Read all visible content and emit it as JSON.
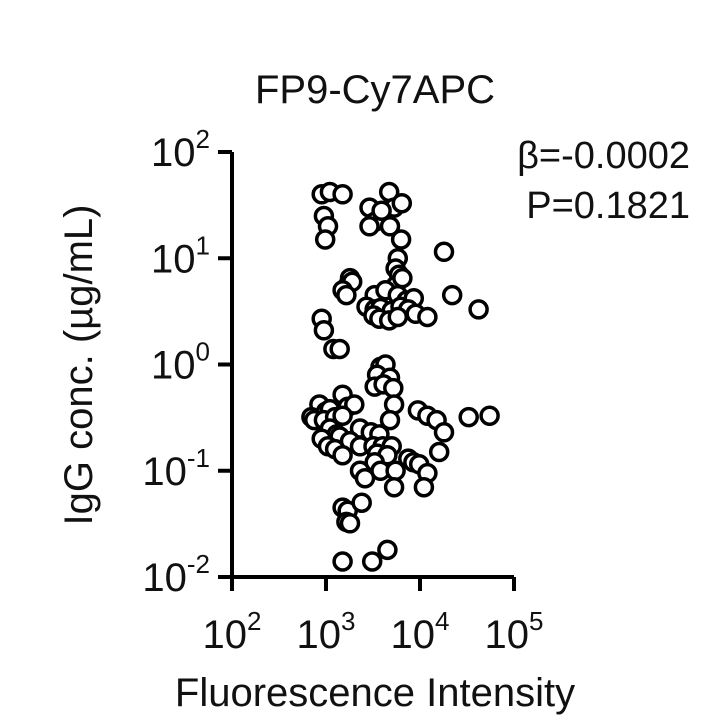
{
  "chart_data": {
    "type": "scatter",
    "title": "FP9-Cy7APC",
    "xlabel": "Fluorescence Intensity",
    "ylabel": "IgG conc. (µg/mL)",
    "x_scale": "log",
    "y_scale": "log",
    "xlim": [
      100,
      100000
    ],
    "ylim": [
      0.01,
      100
    ],
    "x_ticks": [
      {
        "base": "10",
        "exp": "2",
        "value": 100
      },
      {
        "base": "10",
        "exp": "3",
        "value": 1000
      },
      {
        "base": "10",
        "exp": "4",
        "value": 10000
      },
      {
        "base": "10",
        "exp": "5",
        "value": 100000
      }
    ],
    "y_ticks": [
      {
        "base": "10",
        "exp": "-2",
        "value": 0.01
      },
      {
        "base": "10",
        "exp": "-1",
        "value": 0.1
      },
      {
        "base": "10",
        "exp": "0",
        "value": 1
      },
      {
        "base": "10",
        "exp": "1",
        "value": 10
      },
      {
        "base": "10",
        "exp": "2",
        "value": 100
      }
    ],
    "annotations": [
      "β=-0.0002",
      "P=0.1821"
    ],
    "grid": false,
    "marker": {
      "shape": "open-circle",
      "stroke": "#000000",
      "fill": "#ffffff"
    },
    "points": [
      {
        "x": 900,
        "y": 40
      },
      {
        "x": 1100,
        "y": 42
      },
      {
        "x": 1500,
        "y": 40
      },
      {
        "x": 950,
        "y": 25
      },
      {
        "x": 1050,
        "y": 20
      },
      {
        "x": 980,
        "y": 15
      },
      {
        "x": 2900,
        "y": 30
      },
      {
        "x": 3300,
        "y": 22
      },
      {
        "x": 4700,
        "y": 42
      },
      {
        "x": 5300,
        "y": 30
      },
      {
        "x": 6400,
        "y": 33
      },
      {
        "x": 3900,
        "y": 28
      },
      {
        "x": 2900,
        "y": 20
      },
      {
        "x": 4800,
        "y": 20
      },
      {
        "x": 6300,
        "y": 15
      },
      {
        "x": 5800,
        "y": 10
      },
      {
        "x": 18000,
        "y": 11.5
      },
      {
        "x": 5500,
        "y": 8
      },
      {
        "x": 6000,
        "y": 7
      },
      {
        "x": 1800,
        "y": 6.5
      },
      {
        "x": 1700,
        "y": 5.5
      },
      {
        "x": 1900,
        "y": 6
      },
      {
        "x": 5500,
        "y": 5.5
      },
      {
        "x": 6500,
        "y": 6.5
      },
      {
        "x": 1500,
        "y": 5
      },
      {
        "x": 1650,
        "y": 4.5
      },
      {
        "x": 3300,
        "y": 4.5
      },
      {
        "x": 4300,
        "y": 5
      },
      {
        "x": 5800,
        "y": 4.5
      },
      {
        "x": 7200,
        "y": 4
      },
      {
        "x": 8600,
        "y": 4.2
      },
      {
        "x": 22000,
        "y": 4.5
      },
      {
        "x": 2700,
        "y": 3.5
      },
      {
        "x": 3300,
        "y": 3.3
      },
      {
        "x": 3800,
        "y": 3.4
      },
      {
        "x": 5000,
        "y": 3.2
      },
      {
        "x": 6200,
        "y": 3.5
      },
      {
        "x": 7500,
        "y": 3.3
      },
      {
        "x": 9000,
        "y": 3
      },
      {
        "x": 42000,
        "y": 3.3
      },
      {
        "x": 3200,
        "y": 2.9
      },
      {
        "x": 3700,
        "y": 2.7
      },
      {
        "x": 4700,
        "y": 2.6
      },
      {
        "x": 5800,
        "y": 2.8
      },
      {
        "x": 12000,
        "y": 2.8
      },
      {
        "x": 900,
        "y": 2.7
      },
      {
        "x": 950,
        "y": 2.1
      },
      {
        "x": 1200,
        "y": 1.4
      },
      {
        "x": 1400,
        "y": 1.4
      },
      {
        "x": 3800,
        "y": 0.95
      },
      {
        "x": 4300,
        "y": 1
      },
      {
        "x": 3500,
        "y": 0.8
      },
      {
        "x": 4800,
        "y": 0.75
      },
      {
        "x": 3300,
        "y": 0.62
      },
      {
        "x": 4100,
        "y": 0.65
      },
      {
        "x": 5200,
        "y": 0.6
      },
      {
        "x": 1500,
        "y": 0.52
      },
      {
        "x": 850,
        "y": 0.42
      },
      {
        "x": 1000,
        "y": 0.36
      },
      {
        "x": 1100,
        "y": 0.38
      },
      {
        "x": 1700,
        "y": 0.4
      },
      {
        "x": 2000,
        "y": 0.42
      },
      {
        "x": 5300,
        "y": 0.42
      },
      {
        "x": 700,
        "y": 0.32
      },
      {
        "x": 750,
        "y": 0.3
      },
      {
        "x": 950,
        "y": 0.3
      },
      {
        "x": 1250,
        "y": 0.32
      },
      {
        "x": 1500,
        "y": 0.33
      },
      {
        "x": 4800,
        "y": 0.3
      },
      {
        "x": 9500,
        "y": 0.37
      },
      {
        "x": 12000,
        "y": 0.33
      },
      {
        "x": 15000,
        "y": 0.3
      },
      {
        "x": 33000,
        "y": 0.32
      },
      {
        "x": 55000,
        "y": 0.33
      },
      {
        "x": 1100,
        "y": 0.25
      },
      {
        "x": 1300,
        "y": 0.22
      },
      {
        "x": 2300,
        "y": 0.25
      },
      {
        "x": 3000,
        "y": 0.23
      },
      {
        "x": 3700,
        "y": 0.22
      },
      {
        "x": 18000,
        "y": 0.23
      },
      {
        "x": 900,
        "y": 0.2
      },
      {
        "x": 1400,
        "y": 0.21
      },
      {
        "x": 1800,
        "y": 0.19
      },
      {
        "x": 1050,
        "y": 0.17
      },
      {
        "x": 1250,
        "y": 0.16
      },
      {
        "x": 2300,
        "y": 0.17
      },
      {
        "x": 3200,
        "y": 0.17
      },
      {
        "x": 4000,
        "y": 0.17
      },
      {
        "x": 5000,
        "y": 0.17
      },
      {
        "x": 1500,
        "y": 0.14
      },
      {
        "x": 3500,
        "y": 0.145
      },
      {
        "x": 4500,
        "y": 0.14
      },
      {
        "x": 16000,
        "y": 0.15
      },
      {
        "x": 3300,
        "y": 0.12
      },
      {
        "x": 7500,
        "y": 0.13
      },
      {
        "x": 8500,
        "y": 0.12
      },
      {
        "x": 9800,
        "y": 0.115
      },
      {
        "x": 2300,
        "y": 0.1
      },
      {
        "x": 3800,
        "y": 0.1
      },
      {
        "x": 5500,
        "y": 0.1
      },
      {
        "x": 12000,
        "y": 0.095
      },
      {
        "x": 2600,
        "y": 0.085
      },
      {
        "x": 5300,
        "y": 0.07
      },
      {
        "x": 11000,
        "y": 0.07
      },
      {
        "x": 1500,
        "y": 0.045
      },
      {
        "x": 1700,
        "y": 0.042
      },
      {
        "x": 2400,
        "y": 0.05
      },
      {
        "x": 1650,
        "y": 0.033
      },
      {
        "x": 1800,
        "y": 0.032
      },
      {
        "x": 4500,
        "y": 0.018
      },
      {
        "x": 1500,
        "y": 0.014
      },
      {
        "x": 3100,
        "y": 0.014
      }
    ]
  }
}
